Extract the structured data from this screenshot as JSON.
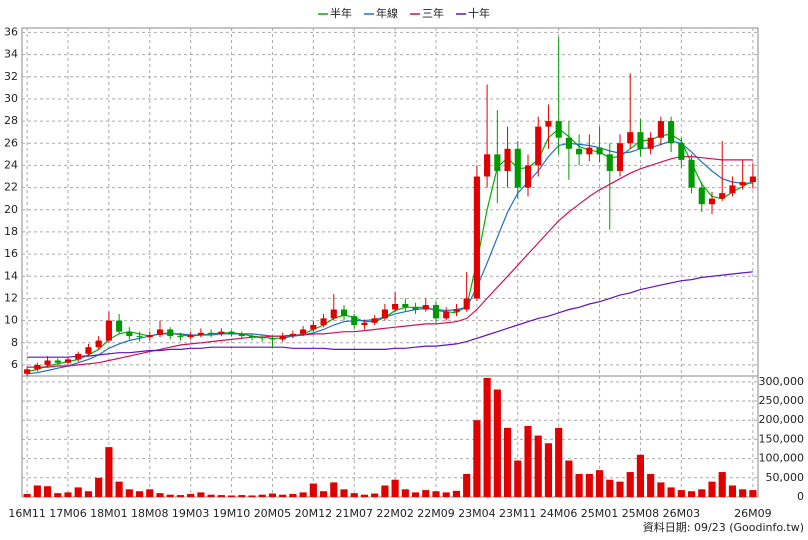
{
  "chart_data": {
    "type": "candlestick",
    "legend": [
      "半年",
      "年線",
      "三年",
      "十年"
    ],
    "footer": "資料日期: 09/23 (Goodinfo.tw)",
    "up_color": "#e00000",
    "down_color": "#009900",
    "grid": true,
    "categories": [
      "16M11",
      null,
      null,
      null,
      "17M06",
      null,
      null,
      null,
      "18M01",
      null,
      null,
      null,
      "18M08",
      null,
      null,
      null,
      "19M03",
      null,
      null,
      null,
      "19M10",
      null,
      null,
      null,
      "20M05",
      null,
      null,
      null,
      "20M12",
      null,
      null,
      null,
      "21M07",
      null,
      null,
      null,
      "22M02",
      null,
      null,
      null,
      "22M09",
      null,
      null,
      null,
      "23M04",
      null,
      null,
      null,
      "23M11",
      null,
      null,
      null,
      "24M06",
      null,
      null,
      null,
      "25M01",
      null,
      null,
      null,
      "25M08",
      null,
      null,
      null,
      "26M03",
      null,
      null,
      null,
      null,
      null,
      null,
      "26M09"
    ],
    "open": [
      5.2,
      5.6,
      6.0,
      6.4,
      6.2,
      6.5,
      7.0,
      7.6,
      8.2,
      10.0,
      9.0,
      8.6,
      8.5,
      8.7,
      9.2,
      8.6,
      8.5,
      8.7,
      8.9,
      8.8,
      9.0,
      8.8,
      8.6,
      8.5,
      8.4,
      8.3,
      8.6,
      8.8,
      9.2,
      9.6,
      10.2,
      11.0,
      10.4,
      9.6,
      9.8,
      10.2,
      11.0,
      11.5,
      11.2,
      11.0,
      11.4,
      10.2,
      10.8,
      11.0,
      12.0,
      23.0,
      25.0,
      23.5,
      25.5,
      22.0,
      24.0,
      27.5,
      28.0,
      26.5,
      25.5,
      25.0,
      25.6,
      25.0,
      23.5,
      26.0,
      27.0,
      25.5,
      26.5,
      28.0,
      26.0,
      24.5,
      22.0,
      20.5,
      21.0,
      21.5,
      22.2,
      22.5
    ],
    "high": [
      5.8,
      6.2,
      6.8,
      6.6,
      6.7,
      7.2,
      7.9,
      8.6,
      10.8,
      10.6,
      9.4,
      9.0,
      9.0,
      10.0,
      9.4,
      8.9,
      9.0,
      9.3,
      9.2,
      9.3,
      9.1,
      9.0,
      8.8,
      8.7,
      8.6,
      8.9,
      9.1,
      9.5,
      10.0,
      10.6,
      12.4,
      11.4,
      10.6,
      10.1,
      10.5,
      11.5,
      12.6,
      12.0,
      11.6,
      12.0,
      11.7,
      11.2,
      11.5,
      14.4,
      24.0,
      31.3,
      29.0,
      27.5,
      26.2,
      25.0,
      28.4,
      29.5,
      35.6,
      28.0,
      26.8,
      26.8,
      27.5,
      26.0,
      26.8,
      32.3,
      28.2,
      27.0,
      28.4,
      28.4,
      26.5,
      25.0,
      22.5,
      21.6,
      26.2,
      23.0,
      24.5,
      24.2
    ],
    "low": [
      5.0,
      5.4,
      5.8,
      6.0,
      5.9,
      6.3,
      6.8,
      7.4,
      8.0,
      8.8,
      8.3,
      8.1,
      8.2,
      8.5,
      8.3,
      8.2,
      8.3,
      8.5,
      8.5,
      8.6,
      8.6,
      8.4,
      8.2,
      8.1,
      7.6,
      8.1,
      8.4,
      8.6,
      9.0,
      9.4,
      10.0,
      10.0,
      9.3,
      9.2,
      9.6,
      10.0,
      10.8,
      10.8,
      10.6,
      10.8,
      9.8,
      10.0,
      10.4,
      10.8,
      11.8,
      22.0,
      20.6,
      22.0,
      21.0,
      21.2,
      23.0,
      25.5,
      25.0,
      22.7,
      24.0,
      24.4,
      24.3,
      18.2,
      23.0,
      25.5,
      24.8,
      25.0,
      25.8,
      25.2,
      23.8,
      21.5,
      19.8,
      19.6,
      20.8,
      21.2,
      21.8,
      21.9
    ],
    "close": [
      5.6,
      6.0,
      6.4,
      6.2,
      6.5,
      7.0,
      7.6,
      8.2,
      10.0,
      9.0,
      8.6,
      8.5,
      8.7,
      9.2,
      8.6,
      8.5,
      8.7,
      8.9,
      8.8,
      9.0,
      8.8,
      8.6,
      8.5,
      8.4,
      8.3,
      8.6,
      8.8,
      9.2,
      9.6,
      10.2,
      11.0,
      10.4,
      9.6,
      9.8,
      10.2,
      11.0,
      11.5,
      11.2,
      11.0,
      11.4,
      10.2,
      10.8,
      11.0,
      12.0,
      23.0,
      25.0,
      23.5,
      25.5,
      22.0,
      24.0,
      27.5,
      28.0,
      26.5,
      25.5,
      25.0,
      25.6,
      25.0,
      23.5,
      26.0,
      27.0,
      25.5,
      26.5,
      28.0,
      26.0,
      24.5,
      22.0,
      20.5,
      21.0,
      21.5,
      22.2,
      22.5,
      23.0
    ],
    "lines": [
      {
        "name": "半年",
        "color": "#00b000",
        "values": [
          5.4,
          5.6,
          5.9,
          6.1,
          6.3,
          6.5,
          6.9,
          7.4,
          8.3,
          8.8,
          9.0,
          8.8,
          8.6,
          8.8,
          8.9,
          8.7,
          8.6,
          8.7,
          8.8,
          8.9,
          8.9,
          8.8,
          8.6,
          8.5,
          8.4,
          8.4,
          8.6,
          8.8,
          9.2,
          9.6,
          10.2,
          10.5,
          10.3,
          9.9,
          9.9,
          10.3,
          10.9,
          11.2,
          11.2,
          11.2,
          10.9,
          10.8,
          10.7,
          11.3,
          15.3,
          20.0,
          23.8,
          24.7,
          23.7,
          23.8,
          24.5,
          26.5,
          27.3,
          26.6,
          25.7,
          25.4,
          25.2,
          24.7,
          24.8,
          25.5,
          26.2,
          26.3,
          26.7,
          26.8,
          26.2,
          24.2,
          22.3,
          21.2,
          21.0,
          21.6,
          22.1,
          22.6
        ]
      },
      {
        "name": "年線",
        "color": "#1f6fd0",
        "values": [
          5.2,
          5.3,
          5.5,
          5.7,
          5.9,
          6.2,
          6.5,
          6.9,
          7.5,
          7.9,
          8.2,
          8.4,
          8.6,
          8.8,
          8.8,
          8.8,
          8.7,
          8.7,
          8.7,
          8.8,
          8.8,
          8.8,
          8.8,
          8.7,
          8.6,
          8.6,
          8.6,
          8.7,
          8.9,
          9.2,
          9.6,
          9.9,
          10.0,
          10.0,
          10.1,
          10.3,
          10.6,
          10.8,
          11.0,
          11.1,
          11.0,
          10.9,
          11.0,
          11.2,
          13.0,
          15.2,
          17.5,
          19.8,
          21.5,
          22.5,
          23.5,
          24.8,
          25.8,
          26.0,
          25.9,
          25.8,
          25.6,
          25.3,
          25.1,
          25.2,
          25.5,
          25.6,
          25.9,
          26.2,
          26.0,
          25.2,
          24.3,
          23.5,
          22.8,
          22.5,
          22.4,
          22.4
        ]
      },
      {
        "name": "三年",
        "color": "#d0105a",
        "values": [
          5.8,
          5.8,
          5.8,
          5.9,
          5.9,
          6.0,
          6.1,
          6.2,
          6.4,
          6.6,
          6.8,
          7.0,
          7.2,
          7.4,
          7.6,
          7.8,
          7.9,
          8.0,
          8.1,
          8.2,
          8.3,
          8.4,
          8.5,
          8.5,
          8.6,
          8.6,
          8.7,
          8.7,
          8.8,
          8.8,
          8.9,
          9.0,
          9.0,
          9.1,
          9.2,
          9.3,
          9.4,
          9.5,
          9.6,
          9.7,
          9.7,
          9.8,
          9.9,
          10.2,
          11.0,
          12.0,
          13.0,
          14.0,
          15.0,
          16.0,
          17.0,
          18.0,
          19.0,
          19.8,
          20.5,
          21.2,
          21.8,
          22.3,
          22.8,
          23.3,
          23.7,
          24.0,
          24.3,
          24.6,
          24.8,
          24.8,
          24.7,
          24.6,
          24.5,
          24.5,
          24.5,
          24.5
        ]
      },
      {
        "name": "十年",
        "color": "#6010c0",
        "values": [
          6.7,
          6.7,
          6.7,
          6.7,
          6.7,
          6.8,
          6.8,
          6.9,
          7.0,
          7.1,
          7.1,
          7.2,
          7.3,
          7.3,
          7.4,
          7.4,
          7.5,
          7.5,
          7.6,
          7.6,
          7.6,
          7.6,
          7.6,
          7.6,
          7.6,
          7.6,
          7.5,
          7.5,
          7.5,
          7.5,
          7.4,
          7.4,
          7.4,
          7.4,
          7.4,
          7.4,
          7.5,
          7.5,
          7.6,
          7.7,
          7.7,
          7.8,
          7.9,
          8.1,
          8.4,
          8.7,
          9.0,
          9.3,
          9.6,
          9.9,
          10.2,
          10.4,
          10.7,
          11.0,
          11.2,
          11.5,
          11.7,
          12.0,
          12.3,
          12.5,
          12.8,
          13.0,
          13.2,
          13.4,
          13.6,
          13.7,
          13.9,
          14.0,
          14.1,
          14.2,
          14.3,
          14.4
        ]
      }
    ],
    "ylim": [
      5,
      36.4
    ],
    "yticks": [
      6,
      8,
      10,
      12,
      14,
      16,
      18,
      20,
      22,
      24,
      26,
      28,
      30,
      32,
      34,
      36
    ],
    "volume": {
      "type": "bar",
      "color": "#e00000",
      "values": [
        8000,
        30000,
        28000,
        10000,
        12000,
        25000,
        15000,
        50000,
        130000,
        40000,
        20000,
        15000,
        20000,
        10000,
        6000,
        5000,
        8000,
        12000,
        6000,
        5000,
        4000,
        5000,
        4000,
        6000,
        9000,
        6000,
        8000,
        12000,
        35000,
        15000,
        38000,
        20000,
        10000,
        6000,
        9000,
        30000,
        45000,
        20000,
        12000,
        18000,
        15000,
        12000,
        16000,
        60000,
        200000,
        310000,
        280000,
        180000,
        95000,
        185000,
        160000,
        140000,
        180000,
        95000,
        60000,
        60000,
        70000,
        45000,
        40000,
        65000,
        110000,
        60000,
        38000,
        25000,
        18000,
        15000,
        20000,
        40000,
        65000,
        30000,
        20000,
        18000
      ],
      "ylim": [
        0,
        310000
      ],
      "yticks": [
        0,
        {
          "value": 50000,
          "label": "50,000"
        },
        {
          "value": 100000,
          "label": "100,000"
        },
        {
          "value": 150000,
          "label": "150,000"
        },
        {
          "value": 200000,
          "label": "200,000"
        },
        {
          "value": 250000,
          "label": "250,000"
        },
        {
          "value": 300000,
          "label": "300,000"
        }
      ]
    }
  }
}
